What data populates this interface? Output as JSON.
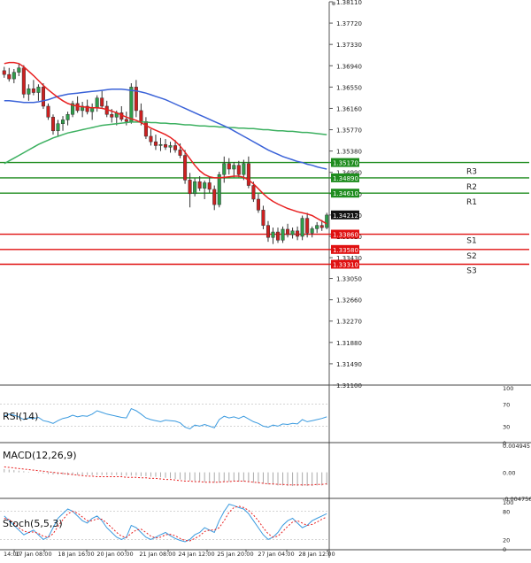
{
  "main_axis": {
    "ticks": [
      "1.38110",
      "1.37720",
      "1.37330",
      "1.36940",
      "1.36550",
      "1.36160",
      "1.35770",
      "1.35380",
      "1.34990",
      "1.34600",
      "1.34210",
      "1.33820",
      "1.33430",
      "1.33050",
      "1.32660",
      "1.32270",
      "1.31880",
      "1.31490",
      "1.31100"
    ],
    "ylim": [
      1.311,
      1.3811
    ]
  },
  "time_axis": [
    "14:00",
    "17 Jan 08:00",
    "18 Jan 16:00",
    "20 Jan 00:00",
    "21 Jan 08:00",
    "24 Jan 12:00",
    "25 Jan 20:00",
    "27 Jan 04:00",
    "28 Jan 12:00"
  ],
  "levels": [
    {
      "name": "R3",
      "price": "1.35170",
      "color": "#1e8c1e"
    },
    {
      "name": "R2",
      "price": "1.34890",
      "color": "#1e8c1e"
    },
    {
      "name": "R1",
      "price": "1.34610",
      "color": "#1e8c1e"
    },
    {
      "name": "S1",
      "price": "1.33860",
      "color": "#e01010"
    },
    {
      "name": "S2",
      "price": "1.33580",
      "color": "#e01010"
    },
    {
      "name": "S3",
      "price": "1.33310",
      "color": "#e01010"
    }
  ],
  "current_price": "1.34212",
  "panels": {
    "rsi": {
      "label": "RSI(14)",
      "ticks": [
        "100",
        "70",
        "30",
        "0"
      ]
    },
    "macd": {
      "label": "MACD(12,26,9)",
      "ticks": [
        "0.004945",
        "0.00",
        "-0.004756"
      ]
    },
    "stoch": {
      "label": "Stoch(5,5,3)",
      "ticks": [
        "100",
        "80",
        "20",
        "0"
      ]
    }
  },
  "colors": {
    "bull": "#2e9e4a",
    "bear": "#cc2020",
    "ma_fast": "#e82020",
    "ma_mid": "#3a62d8",
    "ma_slow": "#3cb060",
    "osc": "#3a9adf",
    "signal": "#e82020"
  },
  "chart_data": {
    "type": "candlestick",
    "x_labels": [
      "14:00",
      "17 Jan 08:00",
      "18 Jan 16:00",
      "20 Jan 00:00",
      "21 Jan 08:00",
      "24 Jan 12:00",
      "25 Jan 20:00",
      "27 Jan 04:00",
      "28 Jan 12:00"
    ],
    "ylim": [
      1.311,
      1.3811
    ],
    "candles": [
      [
        1.3685,
        1.3692,
        1.3672,
        1.3678
      ],
      [
        1.3678,
        1.369,
        1.3665,
        1.367
      ],
      [
        1.367,
        1.3688,
        1.3662,
        1.3682
      ],
      [
        1.3682,
        1.3698,
        1.3675,
        1.369
      ],
      [
        1.369,
        1.3695,
        1.3635,
        1.3642
      ],
      [
        1.3642,
        1.366,
        1.363,
        1.3652
      ],
      [
        1.3652,
        1.3668,
        1.364,
        1.3645
      ],
      [
        1.3645,
        1.366,
        1.363,
        1.3655
      ],
      [
        1.3655,
        1.3662,
        1.3615,
        1.362
      ],
      [
        1.362,
        1.3625,
        1.3595,
        1.36
      ],
      [
        1.36,
        1.3605,
        1.3568,
        1.3575
      ],
      [
        1.3575,
        1.3595,
        1.3565,
        1.3588
      ],
      [
        1.3588,
        1.3602,
        1.3575,
        1.3595
      ],
      [
        1.3595,
        1.361,
        1.3585,
        1.3605
      ],
      [
        1.3605,
        1.363,
        1.36,
        1.3625
      ],
      [
        1.3625,
        1.3638,
        1.3608,
        1.3612
      ],
      [
        1.3612,
        1.3628,
        1.36,
        1.362
      ],
      [
        1.362,
        1.3632,
        1.3605,
        1.361
      ],
      [
        1.361,
        1.3625,
        1.3595,
        1.3618
      ],
      [
        1.3618,
        1.364,
        1.361,
        1.3635
      ],
      [
        1.3635,
        1.3648,
        1.3615,
        1.362
      ],
      [
        1.362,
        1.363,
        1.36,
        1.3605
      ],
      [
        1.3605,
        1.3615,
        1.359,
        1.36
      ],
      [
        1.36,
        1.3612,
        1.3585,
        1.3608
      ],
      [
        1.3608,
        1.362,
        1.3592,
        1.3596
      ],
      [
        1.3596,
        1.361,
        1.3585,
        1.3592
      ],
      [
        1.3592,
        1.3662,
        1.3588,
        1.3655
      ],
      [
        1.3655,
        1.3668,
        1.36,
        1.3612
      ],
      [
        1.3612,
        1.3625,
        1.3585,
        1.3592
      ],
      [
        1.3592,
        1.36,
        1.356,
        1.3565
      ],
      [
        1.3565,
        1.3578,
        1.3548,
        1.3555
      ],
      [
        1.3555,
        1.3568,
        1.354,
        1.3548
      ],
      [
        1.3548,
        1.3562,
        1.3538,
        1.355
      ],
      [
        1.355,
        1.356,
        1.354,
        1.3545
      ],
      [
        1.3545,
        1.3555,
        1.3535,
        1.3548
      ],
      [
        1.3548,
        1.3558,
        1.3535,
        1.354
      ],
      [
        1.354,
        1.3552,
        1.3525,
        1.353
      ],
      [
        1.353,
        1.354,
        1.3478,
        1.3485
      ],
      [
        1.3485,
        1.3498,
        1.3435,
        1.346
      ],
      [
        1.346,
        1.3488,
        1.3455,
        1.3482
      ],
      [
        1.3482,
        1.3492,
        1.3465,
        1.347
      ],
      [
        1.347,
        1.3484,
        1.345,
        1.348
      ],
      [
        1.348,
        1.349,
        1.3462,
        1.3468
      ],
      [
        1.3468,
        1.3475,
        1.343,
        1.344
      ],
      [
        1.344,
        1.35,
        1.3435,
        1.3495
      ],
      [
        1.3495,
        1.3528,
        1.348,
        1.3515
      ],
      [
        1.3515,
        1.3525,
        1.3495,
        1.3505
      ],
      [
        1.3505,
        1.3518,
        1.349,
        1.3512
      ],
      [
        1.3512,
        1.352,
        1.349,
        1.3495
      ],
      [
        1.3495,
        1.3522,
        1.3485,
        1.3515
      ],
      [
        1.3515,
        1.3528,
        1.347,
        1.3475
      ],
      [
        1.3475,
        1.3482,
        1.3445,
        1.345
      ],
      [
        1.345,
        1.346,
        1.3425,
        1.343
      ],
      [
        1.343,
        1.3438,
        1.3395,
        1.3402
      ],
      [
        1.3402,
        1.341,
        1.3372,
        1.338
      ],
      [
        1.338,
        1.3398,
        1.3368,
        1.339
      ],
      [
        1.339,
        1.3398,
        1.337,
        1.3375
      ],
      [
        1.3375,
        1.34,
        1.337,
        1.3395
      ],
      [
        1.3395,
        1.3405,
        1.338,
        1.3385
      ],
      [
        1.3385,
        1.3398,
        1.3378,
        1.3392
      ],
      [
        1.3392,
        1.34,
        1.3375,
        1.3382
      ],
      [
        1.3382,
        1.342,
        1.3375,
        1.3415
      ],
      [
        1.3415,
        1.3425,
        1.338,
        1.3388
      ],
      [
        1.3388,
        1.34,
        1.338,
        1.3396
      ],
      [
        1.3396,
        1.3408,
        1.3388,
        1.3402
      ],
      [
        1.3402,
        1.3412,
        1.3392,
        1.3398
      ],
      [
        1.3398,
        1.3425,
        1.3395,
        1.3421
      ]
    ],
    "ma_fast": [
      1.3698,
      1.37,
      1.37,
      1.3698,
      1.3692,
      1.3684,
      1.3676,
      1.3667,
      1.3658,
      1.365,
      1.3643,
      1.3636,
      1.363,
      1.3625,
      1.3622,
      1.362,
      1.3619,
      1.3618,
      1.3617,
      1.3617,
      1.3616,
      1.3614,
      1.3611,
      1.3608,
      1.3604,
      1.36,
      1.3597,
      1.3594,
      1.359,
      1.3585,
      1.358,
      1.3576,
      1.3572,
      1.3568,
      1.3563,
      1.3556,
      1.3547,
      1.3536,
      1.3524,
      1.3512,
      1.3502,
      1.3495,
      1.3491,
      1.3489,
      1.3489,
      1.349,
      1.3491,
      1.3492,
      1.3492,
      1.349,
      1.3485,
      1.3478,
      1.3469,
      1.346,
      1.3452,
      1.3446,
      1.3441,
      1.3437,
      1.3433,
      1.343,
      1.3427,
      1.3425,
      1.3423,
      1.342,
      1.3415,
      1.341,
      1.3405
    ],
    "ma_mid": [
      1.363,
      1.363,
      1.3629,
      1.3628,
      1.3627,
      1.3627,
      1.3627,
      1.3628,
      1.363,
      1.3632,
      1.3635,
      1.3638,
      1.364,
      1.3642,
      1.3643,
      1.3644,
      1.3645,
      1.3646,
      1.3647,
      1.3648,
      1.3649,
      1.365,
      1.3651,
      1.3651,
      1.3651,
      1.365,
      1.3649,
      1.3648,
      1.3646,
      1.3644,
      1.3641,
      1.3638,
      1.3635,
      1.3632,
      1.3628,
      1.3624,
      1.362,
      1.3616,
      1.3612,
      1.3608,
      1.3604,
      1.36,
      1.3596,
      1.3592,
      1.3588,
      1.3584,
      1.358,
      1.3575,
      1.357,
      1.3565,
      1.356,
      1.3555,
      1.355,
      1.3545,
      1.354,
      1.3536,
      1.3532,
      1.3528,
      1.3525,
      1.3522,
      1.3519,
      1.3517,
      1.3514,
      1.3512,
      1.3509,
      1.3507,
      1.3505
    ],
    "ma_slow": [
      1.3515,
      1.352,
      1.3525,
      1.353,
      1.3535,
      1.354,
      1.3545,
      1.355,
      1.3554,
      1.3558,
      1.3562,
      1.3565,
      1.3568,
      1.3571,
      1.3573,
      1.3575,
      1.3577,
      1.3579,
      1.3581,
      1.3583,
      1.3585,
      1.3586,
      1.3587,
      1.3588,
      1.3589,
      1.359,
      1.3591,
      1.3591,
      1.3591,
      1.3591,
      1.359,
      1.359,
      1.3589,
      1.3589,
      1.3588,
      1.3588,
      1.3587,
      1.3586,
      1.3586,
      1.3585,
      1.3584,
      1.3584,
      1.3583,
      1.3583,
      1.3582,
      1.3582,
      1.3581,
      1.3581,
      1.358,
      1.358,
      1.3579,
      1.3579,
      1.3578,
      1.3577,
      1.3577,
      1.3576,
      1.3575,
      1.3575,
      1.3574,
      1.3574,
      1.3573,
      1.3572,
      1.3572,
      1.3571,
      1.357,
      1.3569,
      1.3568
    ],
    "rsi": [
      48,
      52,
      50,
      47,
      42,
      45,
      44,
      46,
      40,
      38,
      35,
      40,
      44,
      46,
      50,
      47,
      49,
      48,
      52,
      58,
      55,
      52,
      50,
      48,
      46,
      45,
      62,
      58,
      52,
      45,
      42,
      40,
      38,
      41,
      40,
      39,
      36,
      28,
      25,
      32,
      30,
      33,
      30,
      27,
      42,
      48,
      45,
      47,
      44,
      48,
      43,
      38,
      35,
      30,
      28,
      32,
      30,
      34,
      33,
      35,
      34,
      42,
      38,
      40,
      42,
      44,
      47
    ],
    "macd_hist": [
      0.0006,
      0.0005,
      0.0004,
      0.0003,
      0.0002,
      0.0001,
      0.0,
      -0.0001,
      -0.0002,
      -0.0003,
      -0.0004,
      -0.0004,
      -0.0004,
      -0.0005,
      -0.0005,
      -0.0005,
      -0.0005,
      -0.0005,
      -0.0005,
      -0.0005,
      -0.0005,
      -0.0005,
      -0.0005,
      -0.0005,
      -0.0006,
      -0.0006,
      -0.0006,
      -0.0006,
      -0.0007,
      -0.0007,
      -0.0008,
      -0.0008,
      -0.0009,
      -0.001,
      -0.0011,
      -0.0012,
      -0.0013,
      -0.0014,
      -0.0015,
      -0.0016,
      -0.0017,
      -0.0018,
      -0.0019,
      -0.0019,
      -0.0019,
      -0.0018,
      -0.0017,
      -0.0017,
      -0.0017,
      -0.0017,
      -0.0018,
      -0.0019,
      -0.002,
      -0.0021,
      -0.0022,
      -0.0023,
      -0.0024,
      -0.0024,
      -0.0025,
      -0.0025,
      -0.0025,
      -0.0025,
      -0.0025,
      -0.0025,
      -0.0024,
      -0.0024,
      -0.0023
    ],
    "macd_signal": [
      0.001,
      0.0009,
      0.0008,
      0.0007,
      0.0006,
      0.0005,
      0.0004,
      0.0003,
      0.0002,
      0.0001,
      0.0,
      -0.0001,
      -0.0002,
      -0.0003,
      -0.0004,
      -0.0005,
      -0.0006,
      -0.0007,
      -0.0007,
      -0.0008,
      -0.0008,
      -0.0008,
      -0.0008,
      -0.0008,
      -0.0008,
      -0.0009,
      -0.0009,
      -0.0009,
      -0.001,
      -0.001,
      -0.0011,
      -0.0011,
      -0.0012,
      -0.0013,
      -0.0013,
      -0.0014,
      -0.0015,
      -0.0016,
      -0.0016,
      -0.0017,
      -0.0017,
      -0.0018,
      -0.0018,
      -0.0018,
      -0.0018,
      -0.0017,
      -0.0017,
      -0.0016,
      -0.0016,
      -0.0016,
      -0.0017,
      -0.0018,
      -0.0019,
      -0.002,
      -0.0021,
      -0.0021,
      -0.0022,
      -0.0022,
      -0.0023,
      -0.0023,
      -0.0023,
      -0.0023,
      -0.0023,
      -0.0023,
      -0.0022,
      -0.0022,
      -0.0021
    ],
    "stoch_k": [
      70,
      60,
      50,
      40,
      30,
      35,
      40,
      30,
      20,
      25,
      45,
      65,
      75,
      85,
      80,
      70,
      60,
      55,
      65,
      70,
      60,
      45,
      35,
      25,
      20,
      25,
      50,
      45,
      35,
      25,
      20,
      25,
      30,
      35,
      28,
      22,
      18,
      15,
      20,
      30,
      35,
      45,
      40,
      35,
      60,
      80,
      95,
      92,
      88,
      85,
      75,
      60,
      45,
      30,
      20,
      25,
      35,
      50,
      60,
      65,
      55,
      45,
      50,
      60,
      65,
      70,
      75
    ],
    "stoch_d": [
      65,
      62,
      55,
      45,
      38,
      35,
      36,
      33,
      27,
      25,
      32,
      48,
      62,
      75,
      80,
      76,
      68,
      60,
      60,
      64,
      63,
      55,
      45,
      35,
      27,
      24,
      33,
      40,
      42,
      35,
      27,
      23,
      25,
      30,
      31,
      28,
      22,
      18,
      17,
      22,
      28,
      37,
      40,
      40,
      45,
      60,
      78,
      88,
      91,
      88,
      82,
      72,
      60,
      45,
      32,
      25,
      27,
      37,
      48,
      57,
      60,
      55,
      50,
      52,
      57,
      63,
      68
    ]
  }
}
